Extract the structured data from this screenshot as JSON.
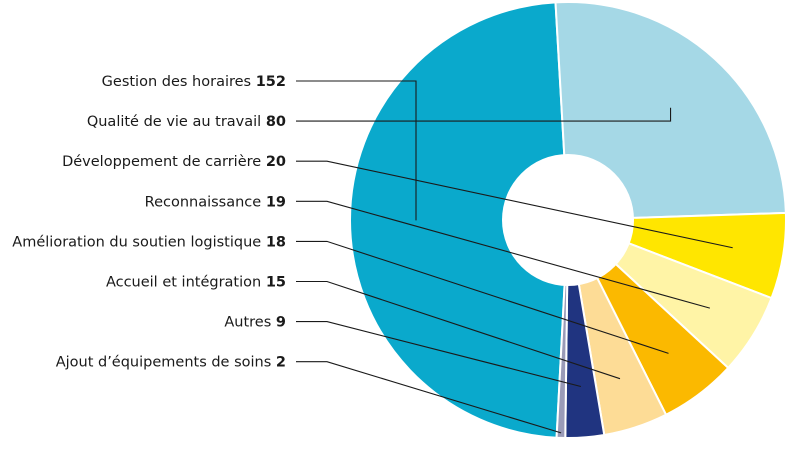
{
  "chart_data": {
    "type": "pie",
    "donut": true,
    "categories": [
      "Gestion des horaires",
      "Qualité de vie au travail",
      "Développement de carrière",
      "Reconnaissance",
      "Amélioration du soutien logistique",
      "Accueil et intégration",
      "Autres",
      "Ajout d’équipements de soins"
    ],
    "values": [
      152,
      80,
      20,
      19,
      18,
      15,
      9,
      2
    ],
    "colors": [
      "#0aa9cc",
      "#a5d8e6",
      "#ffe600",
      "#fff4a6",
      "#fbb900",
      "#fddc96",
      "#203480",
      "#9a9bb8"
    ],
    "legend": "left"
  }
}
